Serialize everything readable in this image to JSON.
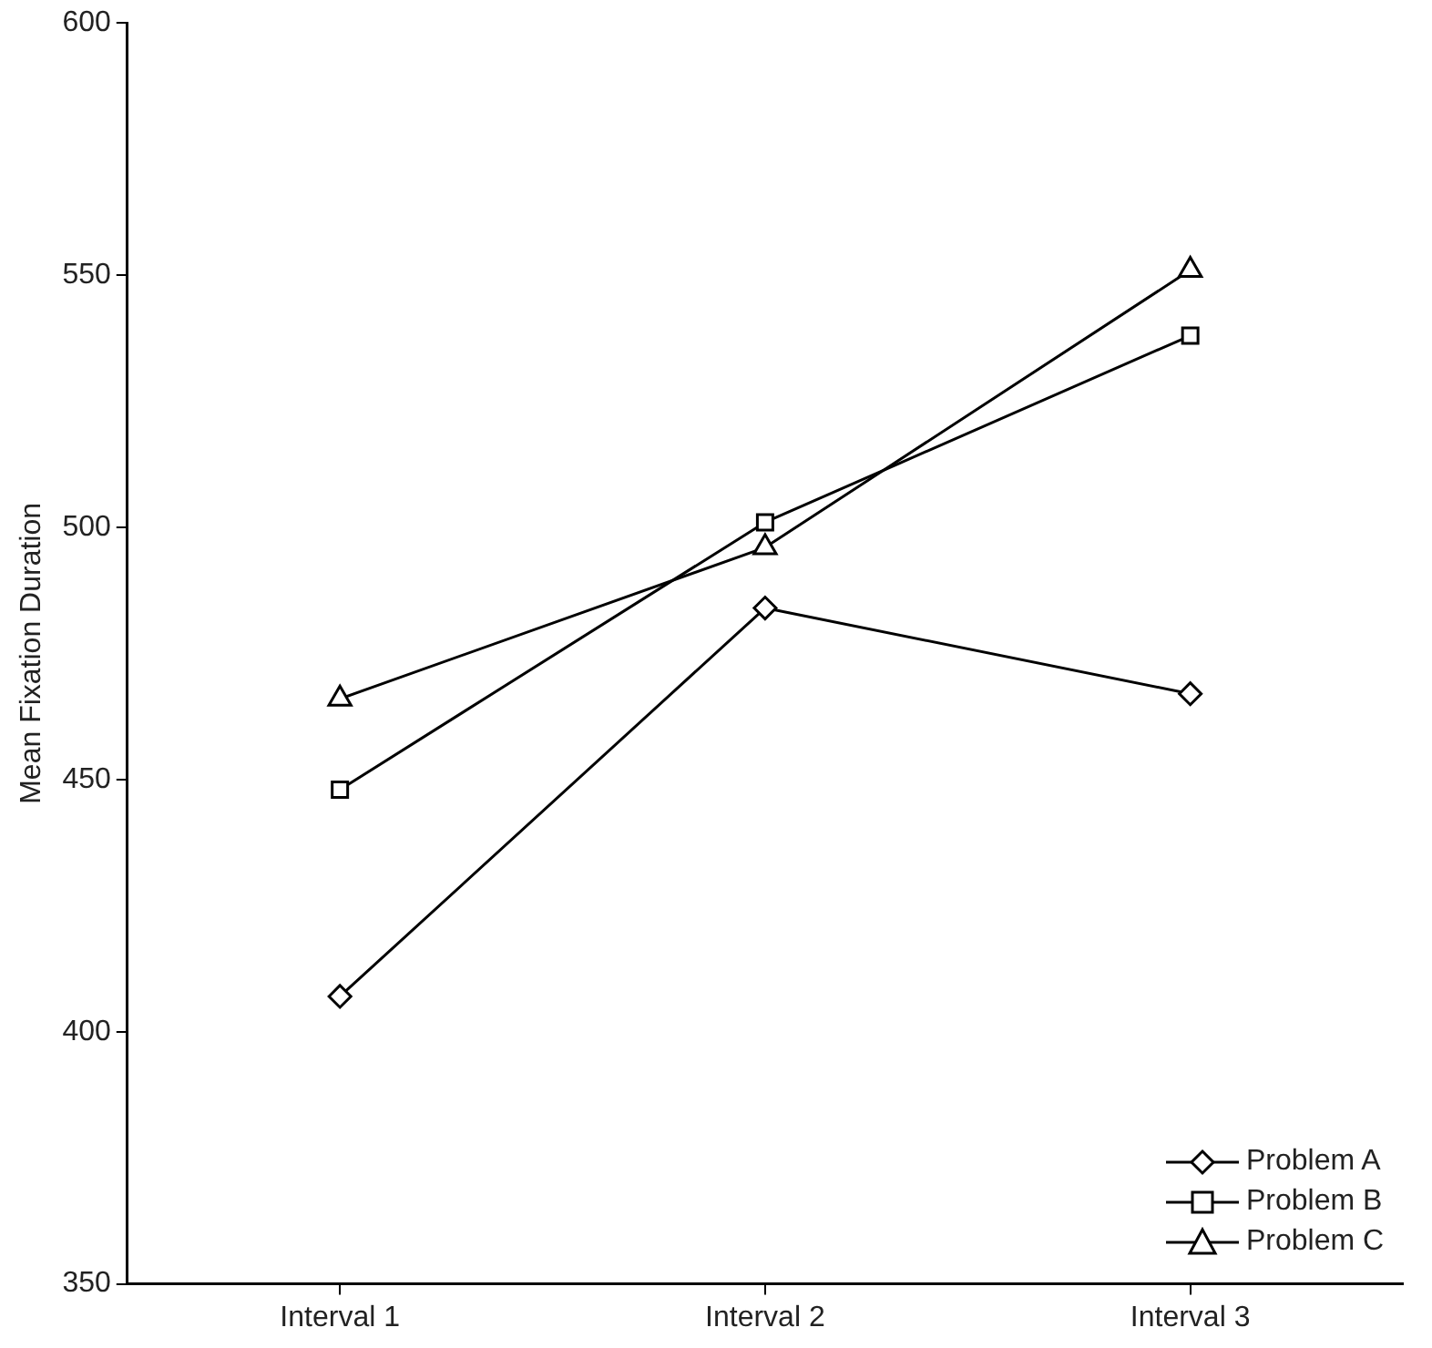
{
  "chart_data": {
    "type": "line",
    "ylabel": "Mean Fixation Duration",
    "categories": [
      "Interval 1",
      "Interval 2",
      "Interval 3"
    ],
    "series": [
      {
        "name": "Problem A",
        "color": "#000000",
        "marker": "diamond",
        "values": [
          407,
          484,
          467
        ]
      },
      {
        "name": "Problem B",
        "color": "#000000",
        "marker": "square",
        "values": [
          448,
          501,
          538
        ]
      },
      {
        "name": "Problem C",
        "color": "#000000",
        "marker": "triangle",
        "values": [
          466,
          496,
          551
        ]
      }
    ],
    "ylim": [
      350,
      600
    ],
    "yticks": [
      350,
      400,
      450,
      500,
      550,
      600
    ],
    "grid": false,
    "legend": "bottom right",
    "line_style": "solid"
  }
}
